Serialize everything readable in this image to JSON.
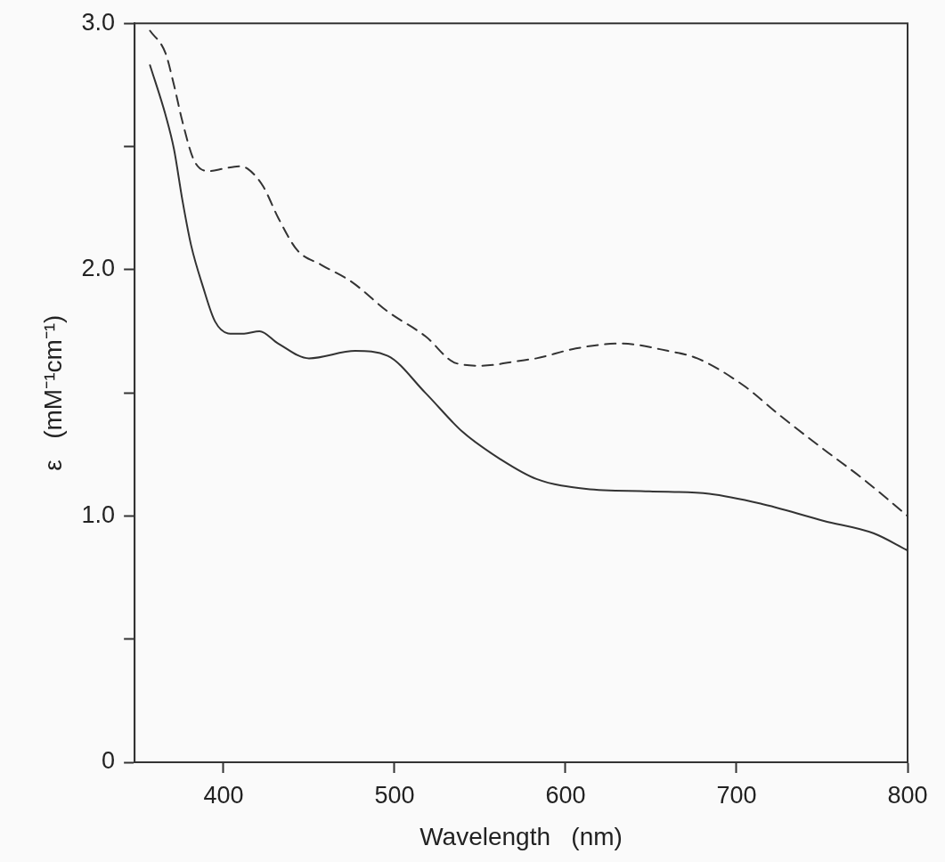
{
  "chart_data": {
    "type": "line",
    "xlabel": "Wavelength   (nm)",
    "ylabel": "ε   (mM⁻¹cm⁻¹)",
    "xlim": [
      348,
      800
    ],
    "xticks": [
      400,
      500,
      600,
      700,
      800
    ],
    "ylim": [
      0,
      3.0
    ],
    "yticks": [
      {
        "value": 0,
        "label": "0"
      },
      {
        "value": 0.5,
        "label": null
      },
      {
        "value": 1.0,
        "label": "1.0"
      },
      {
        "value": 1.5,
        "label": null
      },
      {
        "value": 2.0,
        "label": "2.0"
      },
      {
        "value": 2.5,
        "label": null
      },
      {
        "value": 3.0,
        "label": "3.0"
      }
    ],
    "grid": false,
    "legend": false,
    "marker": "none",
    "series": [
      {
        "color": "#333333",
        "line_style": "solid",
        "x": [
          357,
          366,
          371,
          376,
          381,
          388,
          395,
          404,
          412,
          421,
          432,
          450,
          477,
          496,
          518,
          540,
          562,
          583,
          612,
          649,
          684,
          714,
          751,
          780,
          800
        ],
        "values": [
          2.83,
          2.63,
          2.49,
          2.28,
          2.1,
          1.93,
          1.79,
          1.74,
          1.74,
          1.75,
          1.7,
          1.64,
          1.67,
          1.65,
          1.5,
          1.34,
          1.23,
          1.15,
          1.11,
          1.1,
          1.09,
          1.05,
          0.98,
          0.93,
          0.86
        ]
      },
      {
        "color": "#333333",
        "line_style": "dashed",
        "x": [
          357,
          366,
          371,
          376,
          383,
          392,
          400,
          409,
          414,
          423,
          432,
          443,
          457,
          475,
          496,
          518,
          536,
          551,
          573,
          583,
          606,
          632,
          660,
          677,
          704,
          725,
          751,
          774,
          800
        ],
        "values": [
          2.97,
          2.88,
          2.75,
          2.6,
          2.44,
          2.4,
          2.41,
          2.42,
          2.41,
          2.34,
          2.21,
          2.08,
          2.02,
          1.95,
          1.83,
          1.73,
          1.62,
          1.61,
          1.63,
          1.64,
          1.68,
          1.7,
          1.67,
          1.64,
          1.53,
          1.41,
          1.27,
          1.15,
          1.0
        ]
      }
    ]
  }
}
